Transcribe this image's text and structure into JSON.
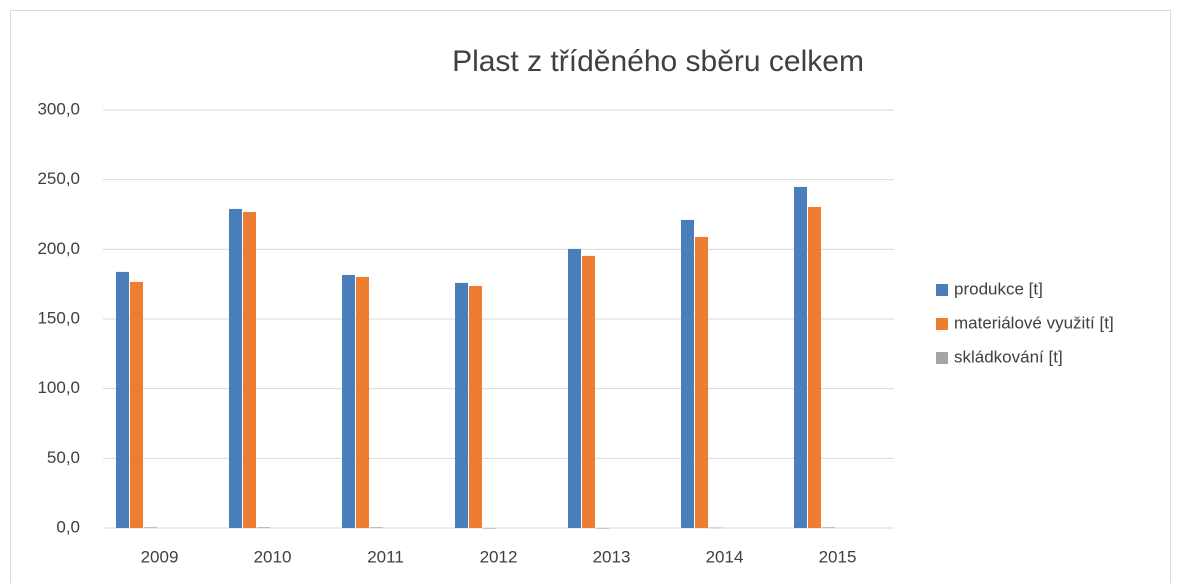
{
  "chart_data": {
    "type": "bar",
    "title": "Plast z tříděného sběru celkem",
    "categories": [
      "2009",
      "2010",
      "2011",
      "2012",
      "2013",
      "2014",
      "2015"
    ],
    "series": [
      {
        "name": "produkce [t]",
        "color": "#4a7ebb",
        "values": [
          183.8,
          229.0,
          181.6,
          175.9,
          200.3,
          221.1,
          244.8
        ]
      },
      {
        "name": "materiálové využití [t]",
        "color": "#ed7d31",
        "values": [
          176.6,
          226.8,
          180.2,
          173.7,
          195.3,
          208.9,
          230.4
        ]
      },
      {
        "name": "skládkování [t]",
        "color": "#a5a5a5",
        "values": [
          0.5,
          0.5,
          0.5,
          0,
          0,
          0.3,
          0.5
        ]
      }
    ],
    "ylim": [
      0,
      300
    ],
    "yticks": [
      {
        "value": 0,
        "label": "0,0"
      },
      {
        "value": 50,
        "label": "50,0"
      },
      {
        "value": 100,
        "label": "100,0"
      },
      {
        "value": 150,
        "label": "150,0"
      },
      {
        "value": 200,
        "label": "200,0"
      },
      {
        "value": 250,
        "label": "250,0"
      },
      {
        "value": 300,
        "label": "300,0"
      }
    ],
    "grid": true,
    "legend": "right"
  }
}
